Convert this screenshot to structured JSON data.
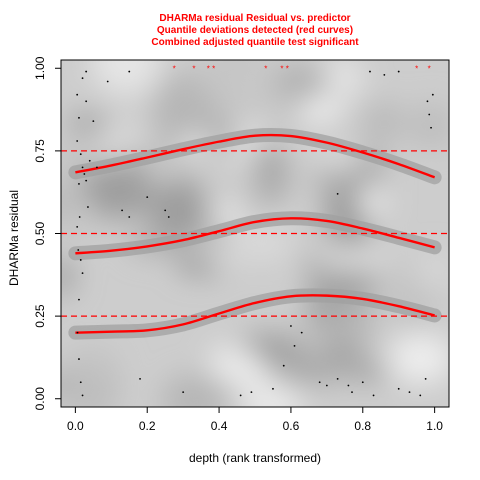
{
  "chart_data": {
    "type": "scatter",
    "title_lines": [
      "DHARMa residual Residual vs. predictor",
      "Quantile deviations detected (red curves)",
      "Combined adjusted quantile test significant"
    ],
    "xlabel": "depth (rank transformed)",
    "ylabel": "DHARMa residual",
    "xlim": [
      -0.04,
      1.04
    ],
    "ylim": [
      -0.025,
      1.025
    ],
    "x_ticks": [
      0.0,
      0.2,
      0.4,
      0.6,
      0.8,
      1.0
    ],
    "x_tick_labels": [
      "0.0",
      "0.2",
      "0.4",
      "0.6",
      "0.8",
      "1.0"
    ],
    "y_ticks": [
      0.0,
      0.25,
      0.5,
      0.75,
      1.0
    ],
    "y_tick_labels": [
      "0.00",
      "0.25",
      "0.50",
      "0.75",
      "1.00"
    ],
    "reference_lines": [
      0.25,
      0.5,
      0.75
    ],
    "quantile_curves": [
      {
        "quantile": 0.25,
        "x": [
          0.0,
          0.1,
          0.2,
          0.3,
          0.4,
          0.5,
          0.6,
          0.7,
          0.8,
          0.9,
          1.0
        ],
        "y": [
          0.2,
          0.203,
          0.207,
          0.225,
          0.258,
          0.29,
          0.31,
          0.312,
          0.302,
          0.28,
          0.252
        ]
      },
      {
        "quantile": 0.5,
        "x": [
          0.0,
          0.1,
          0.2,
          0.3,
          0.4,
          0.5,
          0.6,
          0.7,
          0.8,
          0.9,
          1.0
        ],
        "y": [
          0.44,
          0.448,
          0.461,
          0.48,
          0.507,
          0.535,
          0.546,
          0.538,
          0.515,
          0.487,
          0.458
        ]
      },
      {
        "quantile": 0.75,
        "x": [
          0.0,
          0.1,
          0.2,
          0.3,
          0.4,
          0.5,
          0.6,
          0.7,
          0.8,
          0.9,
          1.0
        ],
        "y": [
          0.685,
          0.706,
          0.73,
          0.755,
          0.778,
          0.796,
          0.795,
          0.775,
          0.745,
          0.71,
          0.67
        ]
      }
    ],
    "outlier_points": [
      {
        "x": 0.275,
        "y": 1.0
      },
      {
        "x": 0.33,
        "y": 1.0
      },
      {
        "x": 0.37,
        "y": 1.0
      },
      {
        "x": 0.385,
        "y": 1.0
      },
      {
        "x": 0.53,
        "y": 1.0
      },
      {
        "x": 0.575,
        "y": 1.0
      },
      {
        "x": 0.59,
        "y": 1.0
      },
      {
        "x": 0.95,
        "y": 1.0
      },
      {
        "x": 0.985,
        "y": 1.0
      }
    ],
    "points": [
      {
        "x": 0.005,
        "y": 0.92
      },
      {
        "x": 0.01,
        "y": 0.85
      },
      {
        "x": 0.005,
        "y": 0.78
      },
      {
        "x": 0.015,
        "y": 0.74
      },
      {
        "x": 0.02,
        "y": 0.7
      },
      {
        "x": 0.025,
        "y": 0.68
      },
      {
        "x": 0.03,
        "y": 0.66
      },
      {
        "x": 0.01,
        "y": 0.65
      },
      {
        "x": 0.04,
        "y": 0.72
      },
      {
        "x": 0.012,
        "y": 0.55
      },
      {
        "x": 0.005,
        "y": 0.52
      },
      {
        "x": 0.008,
        "y": 0.45
      },
      {
        "x": 0.015,
        "y": 0.42
      },
      {
        "x": 0.02,
        "y": 0.38
      },
      {
        "x": 0.01,
        "y": 0.3
      },
      {
        "x": 0.006,
        "y": 0.2
      },
      {
        "x": 0.01,
        "y": 0.12
      },
      {
        "x": 0.015,
        "y": 0.05
      },
      {
        "x": 0.02,
        "y": 0.01
      },
      {
        "x": 0.03,
        "y": 0.99
      },
      {
        "x": 0.05,
        "y": 0.84
      },
      {
        "x": 0.06,
        "y": 0.7
      },
      {
        "x": 0.03,
        "y": 0.9
      },
      {
        "x": 0.02,
        "y": 0.97
      },
      {
        "x": 0.13,
        "y": 0.57
      },
      {
        "x": 0.15,
        "y": 0.55
      },
      {
        "x": 0.25,
        "y": 0.57
      },
      {
        "x": 0.26,
        "y": 0.55
      },
      {
        "x": 0.2,
        "y": 0.61
      },
      {
        "x": 0.09,
        "y": 0.96
      },
      {
        "x": 0.46,
        "y": 0.01
      },
      {
        "x": 0.49,
        "y": 0.02
      },
      {
        "x": 0.55,
        "y": 0.03
      },
      {
        "x": 0.6,
        "y": 0.22
      },
      {
        "x": 0.63,
        "y": 0.2
      },
      {
        "x": 0.61,
        "y": 0.16
      },
      {
        "x": 0.68,
        "y": 0.05
      },
      {
        "x": 0.7,
        "y": 0.04
      },
      {
        "x": 0.73,
        "y": 0.06
      },
      {
        "x": 0.76,
        "y": 0.04
      },
      {
        "x": 0.77,
        "y": 0.02
      },
      {
        "x": 0.8,
        "y": 0.05
      },
      {
        "x": 0.83,
        "y": 0.01
      },
      {
        "x": 0.9,
        "y": 0.03
      },
      {
        "x": 0.93,
        "y": 0.02
      },
      {
        "x": 0.96,
        "y": 0.01
      },
      {
        "x": 0.975,
        "y": 0.06
      },
      {
        "x": 0.985,
        "y": 0.86
      },
      {
        "x": 0.99,
        "y": 0.82
      },
      {
        "x": 0.995,
        "y": 0.92
      },
      {
        "x": 0.98,
        "y": 0.9
      },
      {
        "x": 0.82,
        "y": 0.99
      },
      {
        "x": 0.86,
        "y": 0.98
      },
      {
        "x": 0.9,
        "y": 0.99
      },
      {
        "x": 0.15,
        "y": 0.99
      },
      {
        "x": 0.18,
        "y": 0.06
      },
      {
        "x": 0.3,
        "y": 0.02
      },
      {
        "x": 0.73,
        "y": 0.62
      },
      {
        "x": 0.58,
        "y": 0.1
      },
      {
        "x": 0.035,
        "y": 0.58
      }
    ],
    "colors": {
      "title": "#ff0000",
      "curves": "#ff0000",
      "reference_lines": "#ff0000",
      "outliers": "#ff0000",
      "points": "#000000",
      "confidence_band": "#a0a0a0",
      "background": "#c8c8c8"
    },
    "grid": false,
    "legend": "none"
  }
}
